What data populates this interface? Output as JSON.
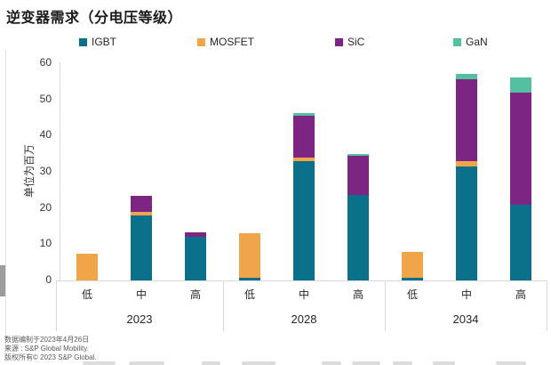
{
  "title": "逆变器需求（分电压等级）",
  "chart_data": {
    "type": "bar",
    "stacked": true,
    "title": "逆变器需求（分电压等级）",
    "ylabel": "单位为百万",
    "ylim": [
      0,
      60
    ],
    "yticks": [
      0,
      10,
      20,
      30,
      40,
      50,
      60
    ],
    "grid": false,
    "legend_position": "top",
    "group_labels": [
      "2023",
      "2028",
      "2034"
    ],
    "categories": [
      "低",
      "中",
      "高",
      "低",
      "中",
      "高",
      "低",
      "中",
      "高"
    ],
    "series": [
      {
        "name": "IGBT",
        "color": "#0b7089",
        "values": [
          0,
          18,
          12,
          0.8,
          33,
          23.5,
          0.7,
          31.5,
          21
        ]
      },
      {
        "name": "MOSFET",
        "color": "#f0a54a",
        "values": [
          7.4,
          1,
          0,
          12.2,
          1,
          0,
          7.2,
          1.5,
          0
        ]
      },
      {
        "name": "SiC",
        "color": "#7d2583",
        "values": [
          0,
          4.3,
          1.4,
          0,
          11.5,
          11,
          0,
          22.5,
          31
        ]
      },
      {
        "name": "GaN",
        "color": "#55bfa2",
        "values": [
          0,
          0,
          0,
          0,
          0.7,
          0.4,
          0,
          1.5,
          4
        ]
      }
    ]
  },
  "footer": {
    "compiled": "数据编制于2023年4月26日",
    "source": "来源 : S&P Global Mobility.",
    "copyright": "版权所有© 2023 S&P Global."
  }
}
